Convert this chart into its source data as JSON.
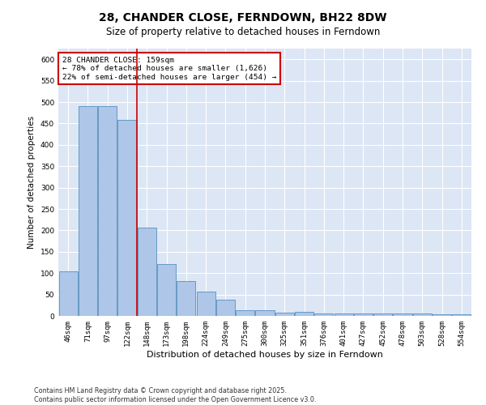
{
  "title": "28, CHANDER CLOSE, FERNDOWN, BH22 8DW",
  "subtitle": "Size of property relative to detached houses in Ferndown",
  "xlabel": "Distribution of detached houses by size in Ferndown",
  "ylabel": "Number of detached properties",
  "categories": [
    "46sqm",
    "71sqm",
    "97sqm",
    "122sqm",
    "148sqm",
    "173sqm",
    "198sqm",
    "224sqm",
    "249sqm",
    "275sqm",
    "300sqm",
    "325sqm",
    "351sqm",
    "376sqm",
    "401sqm",
    "427sqm",
    "452sqm",
    "478sqm",
    "503sqm",
    "528sqm",
    "554sqm"
  ],
  "values": [
    105,
    490,
    490,
    458,
    207,
    121,
    81,
    57,
    38,
    14,
    14,
    8,
    10,
    5,
    5,
    5,
    5,
    5,
    5,
    3,
    3
  ],
  "bar_color": "#aec6e8",
  "bar_edge_color": "#5590bf",
  "vline_x": 3.5,
  "annotation_line1": "28 CHANDER CLOSE: 159sqm",
  "annotation_line2": "← 78% of detached houses are smaller (1,626)",
  "annotation_line3": "22% of semi-detached houses are larger (454) →",
  "annotation_box_color": "#ffffff",
  "annotation_box_edge": "#cc0000",
  "vline_color": "#cc0000",
  "ylim": [
    0,
    625
  ],
  "yticks": [
    0,
    50,
    100,
    150,
    200,
    250,
    300,
    350,
    400,
    450,
    500,
    550,
    600
  ],
  "background_color": "#dce6f5",
  "footer": "Contains HM Land Registry data © Crown copyright and database right 2025.\nContains public sector information licensed under the Open Government Licence v3.0.",
  "title_fontsize": 10,
  "subtitle_fontsize": 8.5,
  "xlabel_fontsize": 8,
  "ylabel_fontsize": 7.5,
  "tick_fontsize": 6.5,
  "footer_fontsize": 5.8
}
